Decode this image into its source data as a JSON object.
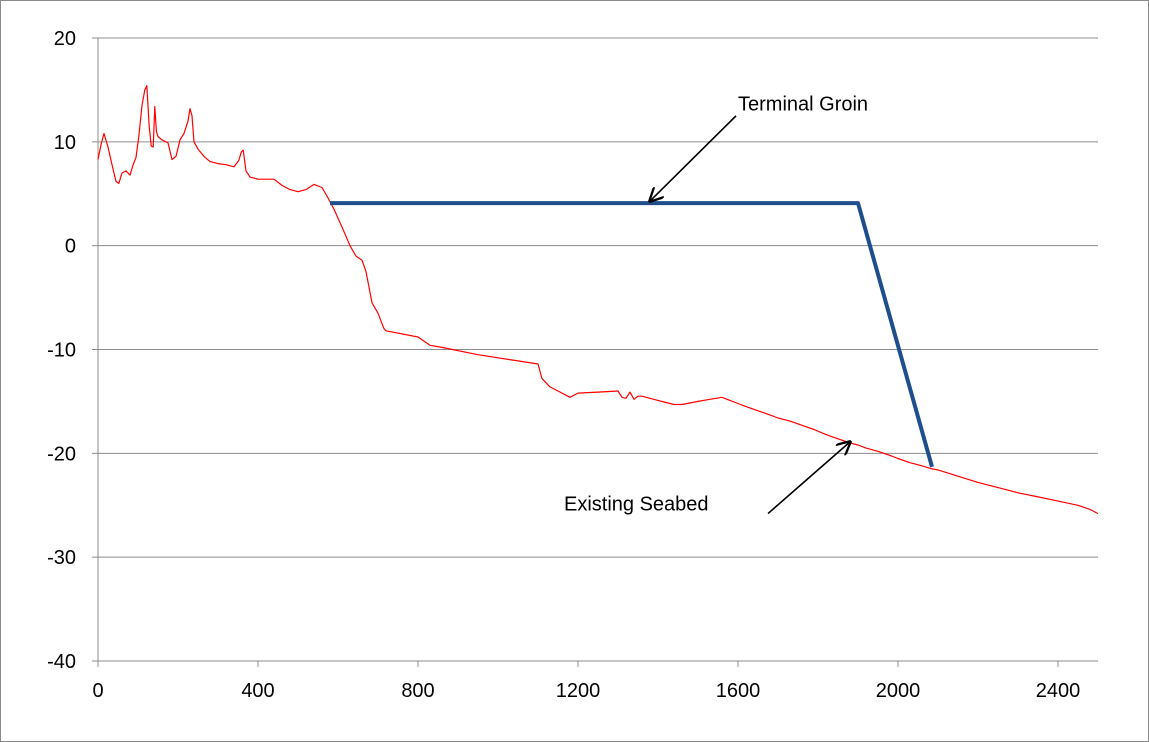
{
  "chart_data": {
    "type": "line",
    "title": "",
    "xlabel": "",
    "ylabel": "",
    "xlim": [
      0,
      2500
    ],
    "ylim": [
      -40,
      20
    ],
    "xticks": [
      0,
      400,
      800,
      1200,
      1600,
      2000,
      2400
    ],
    "yticks": [
      20,
      10,
      0,
      -10,
      -20,
      -30,
      -40
    ],
    "grid": "horizontal",
    "legend": "none",
    "series": [
      {
        "color": "#ff0000",
        "x": [
          0,
          8,
          15,
          25,
          35,
          45,
          52,
          60,
          70,
          80,
          88,
          95,
          102,
          110,
          117,
          122,
          128,
          133,
          138,
          142,
          146,
          150,
          160,
          175,
          185,
          195,
          205,
          215,
          225,
          230,
          235,
          240,
          250,
          265,
          280,
          300,
          320,
          340,
          352,
          358,
          363,
          370,
          380,
          400,
          440,
          460,
          480,
          500,
          520,
          540,
          560,
          575,
          590,
          610,
          630,
          645,
          660,
          670,
          675,
          680,
          685,
          700,
          715,
          720,
          800,
          830,
          860,
          950,
          1050,
          1100,
          1110,
          1130,
          1150,
          1180,
          1200,
          1250,
          1300,
          1310,
          1320,
          1330,
          1340,
          1350,
          1360,
          1380,
          1400,
          1420,
          1440,
          1460,
          1500,
          1530,
          1560,
          1580,
          1600,
          1620,
          1650,
          1680,
          1700,
          1730,
          1760,
          1790,
          1820,
          1850,
          1880,
          1900,
          1920,
          1950,
          1980,
          2000,
          2030,
          2060,
          2085,
          2100,
          2150,
          2200,
          2250,
          2300,
          2350,
          2400,
          2450,
          2480,
          2500
        ],
        "y": [
          8.3,
          9.8,
          10.8,
          9.5,
          7.8,
          6.2,
          6.0,
          7.0,
          7.2,
          6.8,
          7.8,
          8.5,
          10.5,
          13.5,
          15.0,
          15.4,
          11.5,
          9.6,
          9.5,
          13.4,
          11.0,
          10.5,
          10.2,
          9.9,
          8.3,
          8.6,
          10.2,
          10.8,
          12.0,
          13.2,
          12.5,
          10.0,
          9.3,
          8.6,
          8.1,
          7.9,
          7.8,
          7.6,
          8.2,
          9.0,
          9.2,
          7.2,
          6.6,
          6.4,
          6.4,
          5.8,
          5.4,
          5.2,
          5.4,
          5.9,
          5.6,
          4.6,
          3.5,
          1.8,
          0.0,
          -1.0,
          -1.4,
          -2.5,
          -3.5,
          -4.5,
          -5.5,
          -6.5,
          -8.0,
          -8.2,
          -8.8,
          -9.6,
          -9.8,
          -10.5,
          -11.1,
          -11.4,
          -12.8,
          -13.6,
          -14.0,
          -14.6,
          -14.2,
          -14.1,
          -14.0,
          -14.6,
          -14.7,
          -14.1,
          -14.8,
          -14.5,
          -14.5,
          -14.7,
          -14.9,
          -15.1,
          -15.3,
          -15.3,
          -15.0,
          -14.8,
          -14.6,
          -14.9,
          -15.2,
          -15.5,
          -15.9,
          -16.3,
          -16.6,
          -16.9,
          -17.3,
          -17.7,
          -18.2,
          -18.6,
          -19.0,
          -19.2,
          -19.5,
          -19.8,
          -20.2,
          -20.5,
          -20.9,
          -21.2,
          -21.5,
          -21.6,
          -22.2,
          -22.8,
          -23.3,
          -23.8,
          -24.2,
          -24.6,
          -25.0,
          -25.4,
          -25.8
        ]
      },
      {
        "color": "#1f4e8c",
        "x": [
          580,
          1900,
          2085
        ],
        "y": [
          4.1,
          4.1,
          -21.3
        ]
      }
    ],
    "annotations": [
      {
        "text": "Terminal Groin",
        "label_at": [
          1600,
          13
        ],
        "arrow_from": [
          1595,
          12.5
        ],
        "arrow_to": [
          1380,
          4.3
        ]
      },
      {
        "text": "Existing Seabed",
        "label_at": [
          1165,
          -25.5
        ],
        "arrow_from": [
          1675,
          -25.8
        ],
        "arrow_to": [
          1880,
          -18.9
        ]
      }
    ]
  }
}
